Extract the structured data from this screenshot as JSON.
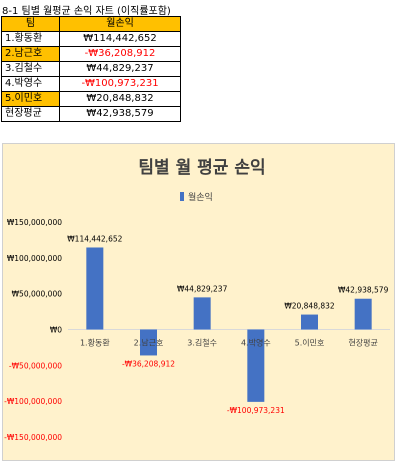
{
  "heading": "8-1 팀별 월평균 손익 자트 (이직률포함)",
  "table": {
    "headers": [
      "팀",
      "월손익"
    ],
    "rows": [
      {
        "team": "1.황동환",
        "value": "₩114,442,652",
        "highlight": false,
        "negative": false
      },
      {
        "team": "2.남근호",
        "value": "-₩36,208,912",
        "highlight": true,
        "negative": true
      },
      {
        "team": "3.김철수",
        "value": "₩44,829,237",
        "highlight": false,
        "negative": false
      },
      {
        "team": "4.박영수",
        "value": "-₩100,973,231",
        "highlight": false,
        "negative": true
      },
      {
        "team": "5.이민호",
        "value": "₩20,848,832",
        "highlight": true,
        "negative": false
      },
      {
        "team": "현장평균",
        "value": "₩42,938,579",
        "highlight": false,
        "negative": false
      }
    ]
  },
  "chart_data": {
    "type": "bar",
    "title": "팀별 월 평균 손익",
    "legend": {
      "label": "월손익",
      "position": "top"
    },
    "categories": [
      "1.황동환",
      "2.남근호",
      "3.김철수",
      "4.박영수",
      "5.이민호",
      "현장평균"
    ],
    "series": [
      {
        "name": "월손익",
        "values": [
          114442652,
          -36208912,
          44829237,
          -100973231,
          20848832,
          42938579
        ]
      }
    ],
    "data_labels": [
      "₩114,442,652",
      "-₩36,208,912",
      "₩44,829,237",
      "-₩100,973,231",
      "₩20,848,832",
      "₩42,938,579"
    ],
    "yticks": [
      150000000,
      100000000,
      50000000,
      0,
      -50000000,
      -100000000,
      -150000000
    ],
    "ytick_labels": [
      "₩150,000,000",
      "₩100,000,000",
      "₩50,000,000",
      "₩0",
      "-₩50,000,000",
      "-₩100,000,000",
      "-₩150,000,000"
    ],
    "ylim": [
      -150000000,
      150000000
    ],
    "grid": false,
    "colors": {
      "bar": "#4472c4",
      "negative_label": "#ff0000",
      "positive_label": "#000000",
      "background": "#fff2cc"
    }
  }
}
